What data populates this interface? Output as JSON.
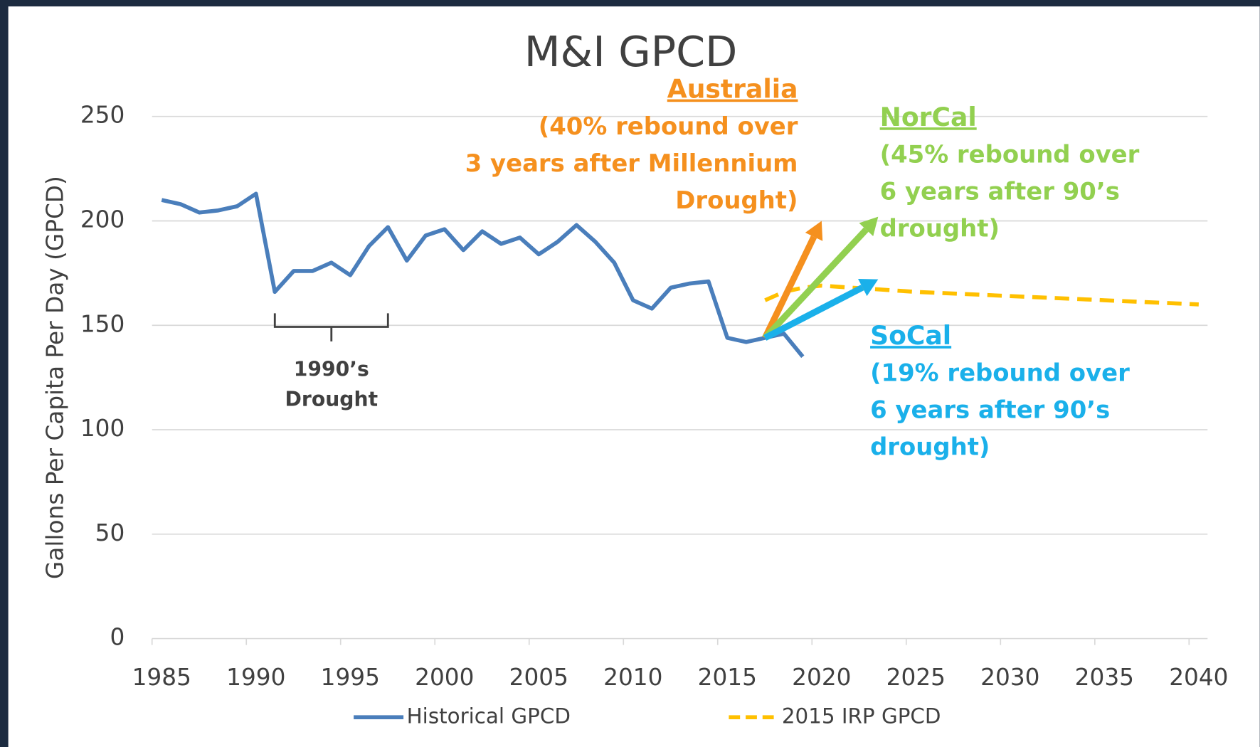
{
  "chart_data": {
    "type": "line",
    "title": "M&I GPCD",
    "y_label": "Gallons Per Capita Per Day (GPCD)",
    "xlim": [
      1985,
      2040
    ],
    "xticks": [
      1985,
      1990,
      1995,
      2000,
      2005,
      2010,
      2015,
      2020,
      2025,
      2030,
      2035,
      2040
    ],
    "ylim": [
      0,
      250
    ],
    "yticks": [
      0,
      50,
      100,
      150,
      200,
      250
    ],
    "grid": true,
    "legend": "bottom",
    "series": [
      {
        "name": "Historical GPCD",
        "color": "#4a7ebb",
        "dashed": false,
        "x": [
          1985,
          1986,
          1987,
          1988,
          1989,
          1990,
          1991,
          1992,
          1993,
          1994,
          1995,
          1996,
          1997,
          1998,
          1999,
          2000,
          2001,
          2002,
          2003,
          2004,
          2005,
          2006,
          2007,
          2008,
          2009,
          2010,
          2011,
          2012,
          2013,
          2014,
          2015,
          2016,
          2017,
          2018,
          2019
        ],
        "values": [
          210,
          208,
          204,
          205,
          207,
          213,
          166,
          176,
          176,
          180,
          174,
          188,
          197,
          181,
          193,
          196,
          186,
          195,
          189,
          192,
          184,
          190,
          198,
          190,
          180,
          162,
          158,
          168,
          170,
          171,
          144,
          142,
          144,
          146,
          135
        ]
      },
      {
        "name": "2015 IRP GPCD",
        "color": "#ffc000",
        "dashed": true,
        "x": [
          2017,
          2018,
          2019,
          2020,
          2025,
          2030,
          2035,
          2040
        ],
        "values": [
          162,
          166,
          168,
          169,
          166,
          164,
          162,
          160
        ]
      }
    ],
    "annotations": [
      {
        "name": "Australia",
        "lines": [
          "(40% rebound over",
          "3 years after Millennium",
          "Drought)"
        ],
        "color": "#f5901e",
        "from": [
          2017,
          144
        ],
        "to": [
          2020,
          200
        ]
      },
      {
        "name": "NorCal",
        "lines": [
          "(45% rebound over",
          "6 years after 90’s",
          "drought)"
        ],
        "color": "#92d050",
        "from": [
          2017,
          144
        ],
        "to": [
          2023,
          202
        ]
      },
      {
        "name": "SoCal",
        "lines": [
          "(19%  rebound over",
          "6 years after 90’s",
          "drought)"
        ],
        "color": "#1ab0ea",
        "from": [
          2017,
          144
        ],
        "to": [
          2023,
          172
        ]
      }
    ],
    "drought": {
      "lines": [
        "1990’s",
        "Drought"
      ],
      "x": [
        1991,
        1997
      ]
    }
  }
}
